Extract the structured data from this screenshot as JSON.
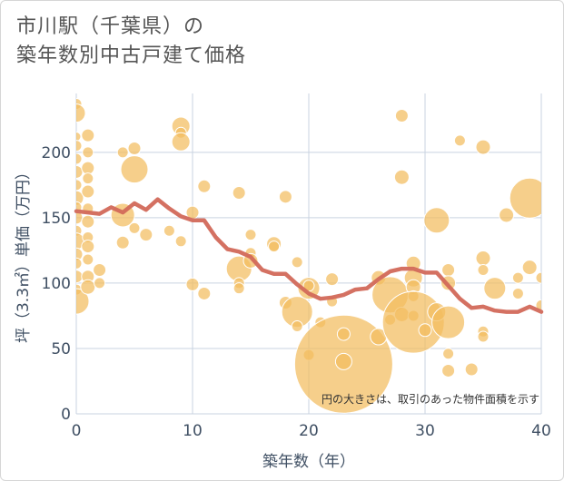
{
  "title": {
    "line1": "市川駅（千葉県）の",
    "line2": "築年数別中古戸建て価格"
  },
  "colors": {
    "bubble": "#f3bc5e",
    "line": "#d2695a",
    "axis_text": "#3f4f63",
    "grid": "#c9d3e0",
    "plot_bg": "#ffffff"
  },
  "chart_data": {
    "type": "scatter",
    "xlabel": "築年数（年）",
    "ylabel": "坪（3.3㎡）単価（万円）",
    "xlim": [
      0,
      40
    ],
    "ylim": [
      0,
      245
    ],
    "xticks": [
      0,
      10,
      20,
      30,
      40
    ],
    "yticks": [
      0,
      50,
      100,
      150,
      200
    ],
    "grid": true,
    "annotation": "円の大きさは、取引のあった物件面積を示す",
    "bubbles": [
      {
        "x": 0,
        "y": 237,
        "size": 6
      },
      {
        "x": 0,
        "y": 230,
        "size": 10
      },
      {
        "x": 0,
        "y": 212,
        "size": 5
      },
      {
        "x": 0,
        "y": 205,
        "size": 6
      },
      {
        "x": 0,
        "y": 195,
        "size": 6
      },
      {
        "x": 0,
        "y": 185,
        "size": 7
      },
      {
        "x": 0,
        "y": 175,
        "size": 6
      },
      {
        "x": 0,
        "y": 165,
        "size": 8
      },
      {
        "x": 0,
        "y": 158,
        "size": 6
      },
      {
        "x": 0,
        "y": 150,
        "size": 7
      },
      {
        "x": 0,
        "y": 140,
        "size": 6
      },
      {
        "x": 0,
        "y": 132,
        "size": 9
      },
      {
        "x": 0,
        "y": 122,
        "size": 7
      },
      {
        "x": 0,
        "y": 115,
        "size": 6
      },
      {
        "x": 0,
        "y": 105,
        "size": 7
      },
      {
        "x": 0,
        "y": 95,
        "size": 6
      },
      {
        "x": 0,
        "y": 86,
        "size": 14
      },
      {
        "x": 1,
        "y": 213,
        "size": 7
      },
      {
        "x": 1,
        "y": 200,
        "size": 6
      },
      {
        "x": 1,
        "y": 188,
        "size": 7
      },
      {
        "x": 1,
        "y": 180,
        "size": 6
      },
      {
        "x": 1,
        "y": 170,
        "size": 7
      },
      {
        "x": 1,
        "y": 157,
        "size": 6
      },
      {
        "x": 1,
        "y": 147,
        "size": 7
      },
      {
        "x": 1,
        "y": 135,
        "size": 6
      },
      {
        "x": 1,
        "y": 128,
        "size": 7
      },
      {
        "x": 1,
        "y": 118,
        "size": 6
      },
      {
        "x": 1,
        "y": 105,
        "size": 7
      },
      {
        "x": 1,
        "y": 97,
        "size": 8
      },
      {
        "x": 2,
        "y": 110,
        "size": 7
      },
      {
        "x": 2,
        "y": 100,
        "size": 6
      },
      {
        "x": 4,
        "y": 200,
        "size": 6
      },
      {
        "x": 4,
        "y": 152,
        "size": 13
      },
      {
        "x": 4,
        "y": 131,
        "size": 7
      },
      {
        "x": 5,
        "y": 203,
        "size": 7
      },
      {
        "x": 5,
        "y": 187,
        "size": 15
      },
      {
        "x": 5,
        "y": 142,
        "size": 6
      },
      {
        "x": 6,
        "y": 137,
        "size": 7
      },
      {
        "x": 8,
        "y": 140,
        "size": 6
      },
      {
        "x": 9,
        "y": 220,
        "size": 10
      },
      {
        "x": 9,
        "y": 215,
        "size": 6
      },
      {
        "x": 9,
        "y": 208,
        "size": 10
      },
      {
        "x": 9,
        "y": 132,
        "size": 6
      },
      {
        "x": 10,
        "y": 154,
        "size": 7
      },
      {
        "x": 10,
        "y": 99,
        "size": 7
      },
      {
        "x": 11,
        "y": 174,
        "size": 7
      },
      {
        "x": 11,
        "y": 92,
        "size": 7
      },
      {
        "x": 14,
        "y": 169,
        "size": 7
      },
      {
        "x": 14,
        "y": 111,
        "size": 14
      },
      {
        "x": 14,
        "y": 100,
        "size": 6
      },
      {
        "x": 14,
        "y": 96,
        "size": 6
      },
      {
        "x": 15,
        "y": 137,
        "size": 6
      },
      {
        "x": 15,
        "y": 123,
        "size": 6
      },
      {
        "x": 15,
        "y": 117,
        "size": 8
      },
      {
        "x": 17,
        "y": 130,
        "size": 8
      },
      {
        "x": 17,
        "y": 128,
        "size": 6
      },
      {
        "x": 18,
        "y": 166,
        "size": 7
      },
      {
        "x": 18,
        "y": 85,
        "size": 7
      },
      {
        "x": 19,
        "y": 116,
        "size": 6
      },
      {
        "x": 19,
        "y": 78,
        "size": 17
      },
      {
        "x": 19,
        "y": 67,
        "size": 6
      },
      {
        "x": 20,
        "y": 96,
        "size": 12
      },
      {
        "x": 20,
        "y": 45,
        "size": 6
      },
      {
        "x": 20,
        "y": 98,
        "size": 6
      },
      {
        "x": 21,
        "y": 70,
        "size": 6
      },
      {
        "x": 22,
        "y": 103,
        "size": 7
      },
      {
        "x": 22,
        "y": 86,
        "size": 6
      },
      {
        "x": 23,
        "y": 38,
        "size": 54
      },
      {
        "x": 23,
        "y": 40,
        "size": 9
      },
      {
        "x": 23,
        "y": 61,
        "size": 7
      },
      {
        "x": 26,
        "y": 59,
        "size": 9
      },
      {
        "x": 26,
        "y": 104,
        "size": 8
      },
      {
        "x": 27,
        "y": 91,
        "size": 20
      },
      {
        "x": 27,
        "y": 72,
        "size": 6
      },
      {
        "x": 28,
        "y": 228,
        "size": 7
      },
      {
        "x": 28,
        "y": 181,
        "size": 8
      },
      {
        "x": 28,
        "y": 76,
        "size": 8
      },
      {
        "x": 29,
        "y": 115,
        "size": 8
      },
      {
        "x": 29,
        "y": 104,
        "size": 10
      },
      {
        "x": 29,
        "y": 97,
        "size": 8
      },
      {
        "x": 29,
        "y": 90,
        "size": 6
      },
      {
        "x": 29,
        "y": 75,
        "size": 6
      },
      {
        "x": 29,
        "y": 70,
        "size": 34
      },
      {
        "x": 30,
        "y": 64,
        "size": 7
      },
      {
        "x": 31,
        "y": 148,
        "size": 14
      },
      {
        "x": 31,
        "y": 78,
        "size": 10
      },
      {
        "x": 32,
        "y": 110,
        "size": 7
      },
      {
        "x": 32,
        "y": 100,
        "size": 8
      },
      {
        "x": 32,
        "y": 70,
        "size": 18
      },
      {
        "x": 32,
        "y": 46,
        "size": 6
      },
      {
        "x": 32,
        "y": 33,
        "size": 7
      },
      {
        "x": 33,
        "y": 209,
        "size": 6
      },
      {
        "x": 34,
        "y": 34,
        "size": 7
      },
      {
        "x": 35,
        "y": 204,
        "size": 8
      },
      {
        "x": 35,
        "y": 119,
        "size": 8
      },
      {
        "x": 35,
        "y": 110,
        "size": 6
      },
      {
        "x": 35,
        "y": 63,
        "size": 6
      },
      {
        "x": 35,
        "y": 59,
        "size": 6
      },
      {
        "x": 36,
        "y": 96,
        "size": 12
      },
      {
        "x": 37,
        "y": 152,
        "size": 8
      },
      {
        "x": 38,
        "y": 104,
        "size": 6
      },
      {
        "x": 38,
        "y": 92,
        "size": 6
      },
      {
        "x": 39,
        "y": 165,
        "size": 22
      },
      {
        "x": 39,
        "y": 112,
        "size": 8
      },
      {
        "x": 40,
        "y": 104,
        "size": 6
      },
      {
        "x": 40,
        "y": 83,
        "size": 6
      }
    ],
    "series": [
      {
        "type": "line",
        "x": [
          0,
          1,
          2,
          3,
          4,
          5,
          6,
          7,
          8,
          9,
          10,
          11,
          12,
          13,
          14,
          15,
          16,
          17,
          18,
          19,
          20,
          21,
          22,
          23,
          24,
          25,
          26,
          27,
          28,
          29,
          30,
          31,
          32,
          33,
          34,
          35,
          36,
          37,
          38,
          39,
          40
        ],
        "values": [
          155,
          154,
          153,
          158,
          154,
          161,
          156,
          164,
          157,
          151,
          148,
          148,
          135,
          126,
          124,
          120,
          110,
          107,
          107,
          99,
          92,
          88,
          89,
          91,
          95,
          96,
          103,
          109,
          111,
          111,
          108,
          108,
          98,
          88,
          81,
          82,
          79,
          78,
          78,
          82,
          78
        ]
      }
    ]
  }
}
